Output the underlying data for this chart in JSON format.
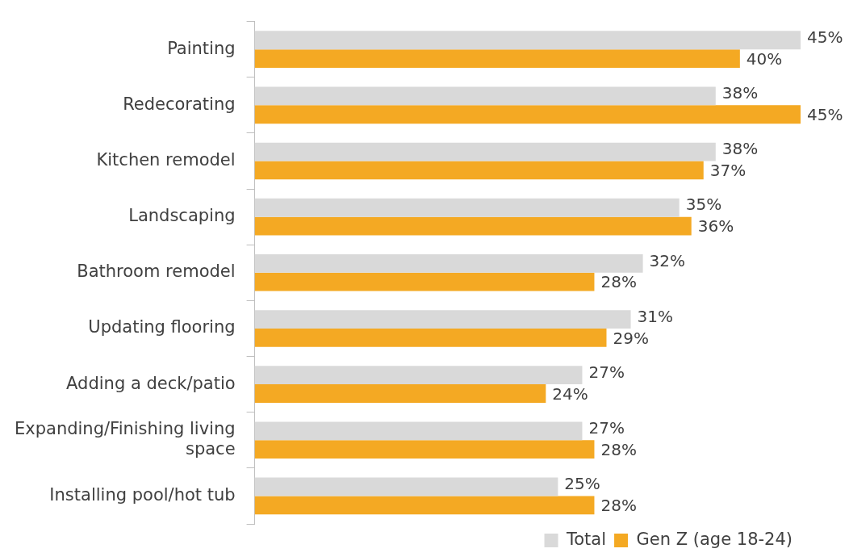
{
  "chart_data": {
    "type": "bar",
    "orientation": "horizontal",
    "categories": [
      "Painting",
      "Redecorating",
      "Kitchen remodel",
      "Landscaping",
      "Bathroom remodel",
      "Updating flooring",
      "Adding a deck/patio",
      "Expanding/Finishing living space",
      "Installing pool/hot tub"
    ],
    "series": [
      {
        "name": "Total",
        "color": "#d9d9d9",
        "values": [
          45,
          38,
          38,
          35,
          32,
          31,
          27,
          27,
          25
        ],
        "value_labels": [
          "45%",
          "38%",
          "38%",
          "35%",
          "32%",
          "31%",
          "27%",
          "27%",
          "25%"
        ]
      },
      {
        "name": "Gen Z (age 18-24)",
        "color": "#f4a923",
        "values": [
          40,
          45,
          37,
          36,
          28,
          29,
          24,
          28,
          28
        ],
        "value_labels": [
          "40%",
          "45%",
          "37%",
          "36%",
          "28%",
          "29%",
          "24%",
          "28%",
          "28%"
        ]
      }
    ],
    "legend": "bottom right",
    "tick_labels": "y"
  }
}
